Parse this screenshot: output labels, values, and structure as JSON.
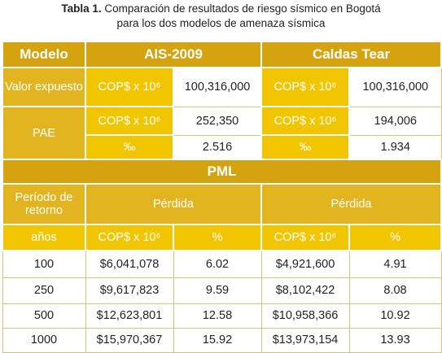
{
  "caption": {
    "label": "Tabla 1.",
    "line1": "Comparación de resultados de riesgo sísmico en Bogotá",
    "line2": "para los dos modelos de amenaza sísmica"
  },
  "table": {
    "header": [
      "Modelo",
      "AIS-2009",
      "Caldas Tear"
    ],
    "exposed": [
      "Valor expuesto",
      "COP$ x 10⁶",
      "100,316,000",
      "COP$ x 10⁶",
      "100,316,000"
    ],
    "pae": {
      "label": "PAE",
      "rows": [
        [
          "COP$ x 10⁶",
          "252,350",
          "COP$ x 10⁶",
          "194,006"
        ],
        [
          "‰",
          "2.516",
          "‰",
          "1.934"
        ]
      ]
    },
    "pml": {
      "title": "PML",
      "period": "Período de retorno",
      "loss": [
        "Pérdida",
        "Pérdida"
      ],
      "units": [
        "años",
        "COP$ x 10⁶",
        "%",
        "COP$ x 10⁶",
        "%"
      ],
      "rows": [
        [
          "100",
          "$6,041,078",
          "6.02",
          "$4,921,600",
          "4.91"
        ],
        [
          "250",
          "$9,617,823",
          "9.59",
          "$8,102,422",
          "8.08"
        ],
        [
          "500",
          "$12,623,801",
          "12.58",
          "$10,958,366",
          "10.92"
        ],
        [
          "1000",
          "$15,970,367",
          "15.92",
          "$13,973,154",
          "13.93"
        ]
      ]
    }
  }
}
